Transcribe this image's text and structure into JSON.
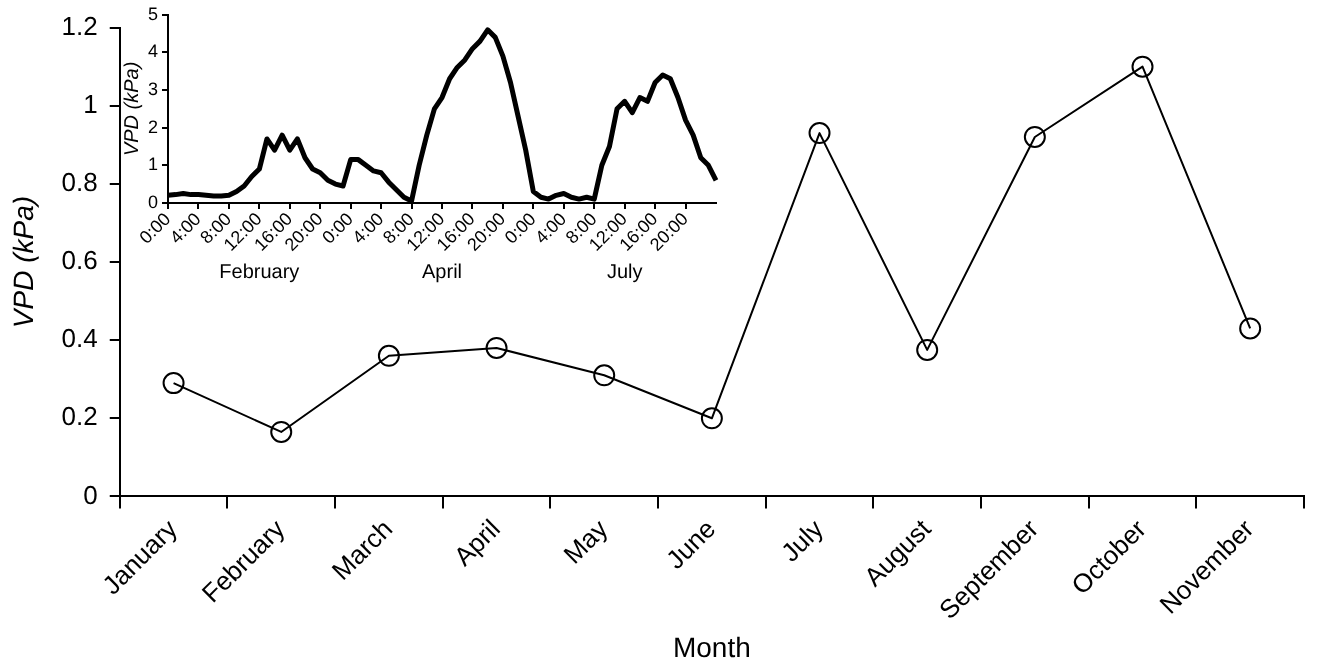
{
  "chart_data": [
    {
      "type": "line",
      "xlabel": "Month",
      "ylabel": "VPD (kPa)",
      "categories": [
        "January",
        "February",
        "March",
        "April",
        "May",
        "June",
        "July",
        "August",
        "September",
        "October",
        "November"
      ],
      "series": [
        {
          "color": "#000000",
          "values": [
            0.29,
            0.165,
            0.36,
            0.38,
            0.31,
            0.2,
            0.93,
            0.375,
            0.92,
            1.1,
            0.43
          ]
        }
      ],
      "ylim": [
        0,
        1.2
      ],
      "yticks": [
        0,
        0.2,
        0.4,
        0.6,
        0.8,
        1,
        1.2
      ],
      "grid": false,
      "legend": false,
      "marker": "circle",
      "line_style": "solid"
    },
    {
      "type": "line",
      "ylabel": "VPD (kPa)",
      "annotations": [
        "February",
        "April",
        "July"
      ],
      "categories": [
        "0:00",
        null,
        null,
        null,
        "4:00",
        null,
        null,
        null,
        "8:00",
        null,
        null,
        null,
        "12:00",
        null,
        null,
        null,
        "16:00",
        null,
        null,
        null,
        "20:00",
        null,
        null,
        null,
        "0:00",
        null,
        null,
        null,
        "4:00",
        null,
        null,
        null,
        "8:00",
        null,
        null,
        null,
        "12:00",
        null,
        null,
        null,
        "16:00",
        null,
        null,
        null,
        "20:00",
        null,
        null,
        null,
        "0:00",
        null,
        null,
        null,
        "4:00",
        null,
        null,
        null,
        "8:00",
        null,
        null,
        null,
        "12:00",
        null,
        null,
        null,
        "16:00",
        null,
        null,
        null,
        "20:00",
        null,
        null,
        null,
        null
      ],
      "series": [
        {
          "color": "#000000",
          "values": [
            0.2,
            0.22,
            0.25,
            0.22,
            0.22,
            0.2,
            0.18,
            0.18,
            0.2,
            0.3,
            0.45,
            0.7,
            0.9,
            1.7,
            1.4,
            1.8,
            1.4,
            1.7,
            1.2,
            0.9,
            0.8,
            0.6,
            0.5,
            0.45,
            1.15,
            1.15,
            1.0,
            0.85,
            0.8,
            0.55,
            0.35,
            0.15,
            0.05,
            1.0,
            1.8,
            2.5,
            2.8,
            3.3,
            3.6,
            3.8,
            4.1,
            4.3,
            4.6,
            4.4,
            3.9,
            3.2,
            2.3,
            1.4,
            0.3,
            0.15,
            0.1,
            0.2,
            0.25,
            0.15,
            0.1,
            0.15,
            0.1,
            1.0,
            1.5,
            2.5,
            2.7,
            2.4,
            2.8,
            2.7,
            3.2,
            3.4,
            3.3,
            2.8,
            2.2,
            1.8,
            1.2,
            1.0,
            0.6
          ]
        }
      ],
      "ylim": [
        0,
        5
      ],
      "yticks": [
        0,
        1,
        2,
        3,
        4,
        5
      ],
      "grid": false,
      "legend": false,
      "marker": "none",
      "line_style": "solid"
    }
  ]
}
